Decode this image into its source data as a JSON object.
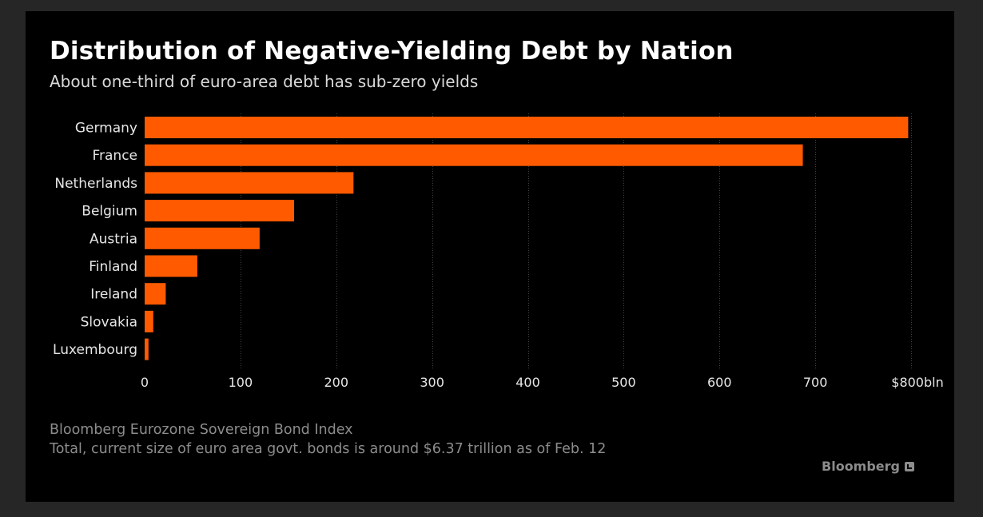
{
  "header": {
    "title": "Distribution of Negative-Yielding Debt by Nation",
    "subtitle": "About one-third of euro-area debt has sub-zero yields"
  },
  "footer": {
    "source": "Bloomberg Eurozone Sovereign Bond Index",
    "note": "Total, current size of euro area govt. bonds is around $6.37 trillion as of Feb. 12",
    "brand": "Bloomberg"
  },
  "colors": {
    "bar": "#ff5a00",
    "background": "#000000",
    "frame": "#262626",
    "grid": "#444444"
  },
  "chart_data": {
    "type": "bar",
    "orientation": "horizontal",
    "title": "Distribution of Negative-Yielding Debt by Nation",
    "subtitle": "About one-third of euro-area debt has sub-zero yields",
    "categories": [
      "Germany",
      "France",
      "Netherlands",
      "Belgium",
      "Austria",
      "Finland",
      "Ireland",
      "Slovakia",
      "Luxembourg"
    ],
    "values": [
      797,
      687,
      218,
      156,
      120,
      55,
      22,
      9,
      4
    ],
    "xlim": [
      0,
      800
    ],
    "xticks": [
      0,
      100,
      200,
      300,
      400,
      500,
      600,
      700,
      800
    ],
    "xtick_labels": [
      "0",
      "100",
      "200",
      "300",
      "400",
      "500",
      "600",
      "700",
      "$800bln"
    ],
    "grid": "vertical dotted",
    "legend": "none"
  }
}
